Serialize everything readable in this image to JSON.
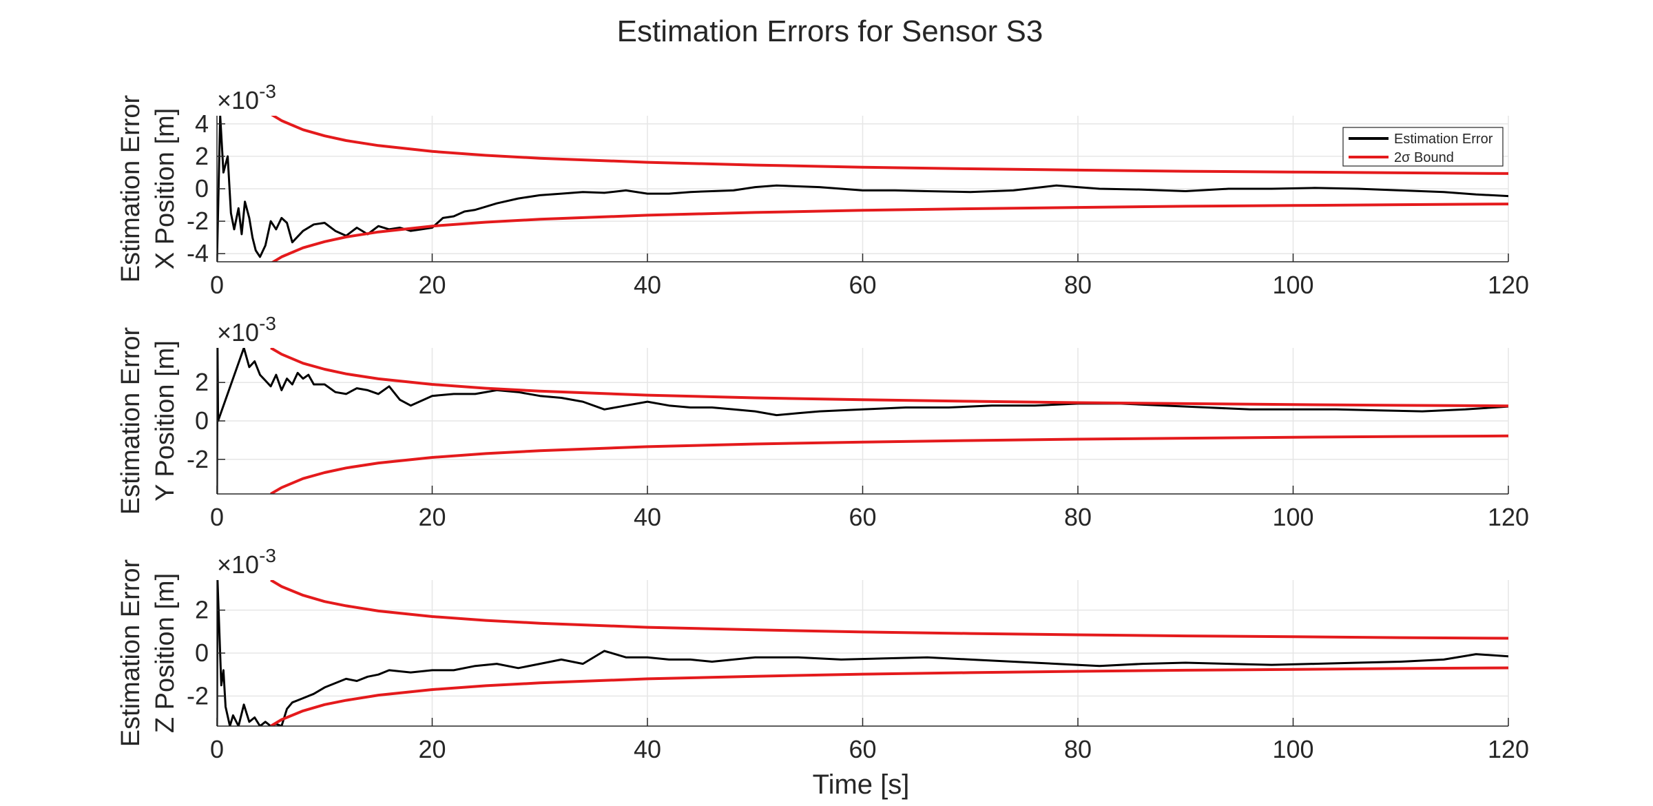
{
  "figure": {
    "title": "Estimation Errors for Sensor S3",
    "xlabel": "Time [s]"
  },
  "colors": {
    "estimation_error": "#000000",
    "bound": "#e41a1c",
    "grid": "#e6e6e6",
    "axis": "#262626"
  },
  "chart_data": [
    {
      "type": "line",
      "panel": "x",
      "ylabel_line1": "Estimation Error",
      "ylabel_line2": "X Position [m]",
      "exponent_label": "×10",
      "exponent_power": "-3",
      "xlim": [
        0,
        120
      ],
      "ylim": [
        -4.5,
        4.5
      ],
      "xticks": [
        0,
        20,
        40,
        60,
        80,
        100,
        120
      ],
      "xtick_labels": [
        "0",
        "20",
        "40",
        "60",
        "80",
        "100",
        "120"
      ],
      "yticks": [
        -4,
        -2,
        0,
        2,
        4
      ],
      "ytick_labels": [
        "-4",
        "-2",
        "0",
        "2",
        "4"
      ],
      "grid": true,
      "legend": {
        "placement": "top-right",
        "entries": [
          {
            "label_main": "Estimation Error",
            "sigma": "",
            "series": "error"
          },
          {
            "label_main": " Bound",
            "sigma": "2σ",
            "series": "bound"
          }
        ]
      },
      "series": [
        {
          "key": "error",
          "x": [
            0,
            0.3,
            0.6,
            1,
            1.3,
            1.6,
            2,
            2.3,
            2.6,
            3,
            3.3,
            3.6,
            4,
            4.5,
            5,
            5.5,
            6,
            6.5,
            7,
            8,
            9,
            10,
            11,
            12,
            13,
            14,
            15,
            16,
            17,
            18,
            19,
            20,
            21,
            22,
            23,
            24,
            25,
            26,
            28,
            30,
            32,
            34,
            36,
            38,
            40,
            42,
            44,
            46,
            48,
            50,
            52,
            54,
            56,
            58,
            60,
            63,
            66,
            70,
            74,
            78,
            82,
            86,
            90,
            94,
            98,
            102,
            106,
            110,
            114,
            117,
            120
          ],
          "y": [
            -4.5,
            4.5,
            1,
            2,
            -1.5,
            -2.5,
            -1.2,
            -2.8,
            -0.8,
            -1.8,
            -3,
            -3.8,
            -4.2,
            -3.5,
            -2,
            -2.5,
            -1.8,
            -2.1,
            -3.3,
            -2.6,
            -2.2,
            -2.1,
            -2.6,
            -2.9,
            -2.4,
            -2.8,
            -2.3,
            -2.5,
            -2.4,
            -2.6,
            -2.5,
            -2.4,
            -1.8,
            -1.7,
            -1.4,
            -1.3,
            -1.1,
            -0.9,
            -0.6,
            -0.4,
            -0.3,
            -0.2,
            -0.25,
            -0.1,
            -0.3,
            -0.3,
            -0.2,
            -0.15,
            -0.1,
            0.1,
            0.2,
            0.15,
            0.1,
            0,
            -0.1,
            -0.1,
            -0.15,
            -0.2,
            -0.1,
            0.2,
            0.0,
            -0.05,
            -0.15,
            0.0,
            0.0,
            0.05,
            0.0,
            -0.1,
            -0.2,
            -0.35,
            -0.45
          ]
        },
        {
          "key": "bound_upper",
          "x": [
            5,
            6,
            8,
            10,
            12,
            15,
            20,
            25,
            30,
            40,
            50,
            60,
            70,
            80,
            90,
            100,
            110,
            120
          ],
          "y": [
            4.6,
            4.2,
            3.64,
            3.26,
            2.97,
            2.66,
            2.3,
            2.06,
            1.88,
            1.63,
            1.46,
            1.33,
            1.23,
            1.15,
            1.08,
            1.03,
            0.98,
            0.94
          ]
        },
        {
          "key": "bound_lower",
          "x": [
            5,
            6,
            8,
            10,
            12,
            15,
            20,
            25,
            30,
            40,
            50,
            60,
            70,
            80,
            90,
            100,
            110,
            120
          ],
          "y": [
            -4.6,
            -4.2,
            -3.64,
            -3.26,
            -2.97,
            -2.66,
            -2.3,
            -2.06,
            -1.88,
            -1.63,
            -1.46,
            -1.33,
            -1.23,
            -1.15,
            -1.08,
            -1.03,
            -0.98,
            -0.94
          ]
        }
      ]
    },
    {
      "type": "line",
      "panel": "y",
      "ylabel_line1": "Estimation Error",
      "ylabel_line2": "Y Position [m]",
      "exponent_label": "×10",
      "exponent_power": "-3",
      "xlim": [
        0,
        120
      ],
      "ylim": [
        -3.8,
        3.8
      ],
      "xticks": [
        0,
        20,
        40,
        60,
        80,
        100,
        120
      ],
      "xtick_labels": [
        "0",
        "20",
        "40",
        "60",
        "80",
        "100",
        "120"
      ],
      "yticks": [
        -2,
        0,
        2
      ],
      "ytick_labels": [
        "-2",
        "0",
        "2"
      ],
      "grid": true,
      "series": [
        {
          "key": "error",
          "x": [
            0,
            0.05,
            0.1,
            2.5,
            3,
            3.5,
            4,
            4.5,
            5,
            5.5,
            6,
            6.5,
            7,
            7.5,
            8,
            8.5,
            9,
            10,
            11,
            12,
            13,
            14,
            15,
            16,
            17,
            18,
            20,
            22,
            24,
            26,
            28,
            30,
            32,
            34,
            36,
            38,
            40,
            42,
            44,
            46,
            48,
            50,
            52,
            54,
            56,
            60,
            64,
            68,
            72,
            76,
            80,
            84,
            88,
            92,
            96,
            100,
            104,
            108,
            112,
            116,
            120
          ],
          "y": [
            -3.8,
            3.8,
            0,
            3.8,
            2.8,
            3.1,
            2.4,
            2.1,
            1.8,
            2.4,
            1.6,
            2.2,
            1.9,
            2.5,
            2.2,
            2.4,
            1.9,
            1.9,
            1.5,
            1.4,
            1.7,
            1.6,
            1.4,
            1.8,
            1.1,
            0.8,
            1.3,
            1.4,
            1.4,
            1.6,
            1.5,
            1.3,
            1.2,
            1.0,
            0.6,
            0.8,
            1.0,
            0.8,
            0.7,
            0.7,
            0.6,
            0.5,
            0.3,
            0.4,
            0.5,
            0.6,
            0.7,
            0.7,
            0.8,
            0.8,
            0.9,
            0.9,
            0.8,
            0.7,
            0.6,
            0.6,
            0.6,
            0.55,
            0.5,
            0.6,
            0.75
          ]
        },
        {
          "key": "bound_upper",
          "x": [
            5,
            6,
            8,
            10,
            12,
            15,
            20,
            25,
            30,
            40,
            50,
            60,
            70,
            80,
            90,
            100,
            110,
            120
          ],
          "y": [
            3.8,
            3.47,
            3.0,
            2.69,
            2.45,
            2.19,
            1.9,
            1.7,
            1.55,
            1.34,
            1.2,
            1.1,
            1.02,
            0.95,
            0.9,
            0.85,
            0.81,
            0.78
          ]
        },
        {
          "key": "bound_lower",
          "x": [
            5,
            6,
            8,
            10,
            12,
            15,
            20,
            25,
            30,
            40,
            50,
            60,
            70,
            80,
            90,
            100,
            110,
            120
          ],
          "y": [
            -3.8,
            -3.47,
            -3.0,
            -2.69,
            -2.45,
            -2.19,
            -1.9,
            -1.7,
            -1.55,
            -1.34,
            -1.2,
            -1.1,
            -1.02,
            -0.95,
            -0.9,
            -0.85,
            -0.81,
            -0.78
          ]
        }
      ]
    },
    {
      "type": "line",
      "panel": "z",
      "ylabel_line1": "Estimation Error",
      "ylabel_line2": "Z Position [m]",
      "exponent_label": "×10",
      "exponent_power": "-3",
      "xlim": [
        0,
        120
      ],
      "ylim": [
        -3.4,
        3.4
      ],
      "xticks": [
        0,
        20,
        40,
        60,
        80,
        100,
        120
      ],
      "xtick_labels": [
        "0",
        "20",
        "40",
        "60",
        "80",
        "100",
        "120"
      ],
      "yticks": [
        -2,
        0,
        2
      ],
      "ytick_labels": [
        "-2",
        "0",
        "2"
      ],
      "grid": true,
      "series": [
        {
          "key": "error",
          "x": [
            0,
            0.05,
            0.4,
            0.6,
            0.8,
            1.2,
            1.5,
            2,
            2.5,
            3,
            3.5,
            4,
            4.5,
            5,
            5.5,
            6,
            6.5,
            7,
            8,
            9,
            10,
            11,
            12,
            13,
            14,
            15,
            16,
            18,
            20,
            22,
            24,
            26,
            28,
            30,
            32,
            34,
            36,
            38,
            40,
            42,
            44,
            46,
            48,
            50,
            54,
            58,
            62,
            66,
            70,
            74,
            78,
            82,
            86,
            90,
            94,
            98,
            102,
            106,
            110,
            114,
            117,
            120
          ],
          "y": [
            -3.4,
            3.4,
            -1.5,
            -0.8,
            -2.5,
            -3.4,
            -2.9,
            -3.4,
            -2.4,
            -3.2,
            -3.0,
            -3.4,
            -3.2,
            -3.4,
            -3.3,
            -3.4,
            -2.6,
            -2.3,
            -2.1,
            -1.9,
            -1.6,
            -1.4,
            -1.2,
            -1.3,
            -1.1,
            -1.0,
            -0.8,
            -0.9,
            -0.8,
            -0.8,
            -0.6,
            -0.5,
            -0.7,
            -0.5,
            -0.3,
            -0.5,
            0.1,
            -0.2,
            -0.2,
            -0.3,
            -0.3,
            -0.4,
            -0.3,
            -0.2,
            -0.2,
            -0.3,
            -0.25,
            -0.2,
            -0.3,
            -0.4,
            -0.5,
            -0.6,
            -0.5,
            -0.45,
            -0.5,
            -0.55,
            -0.5,
            -0.45,
            -0.4,
            -0.3,
            -0.05,
            -0.15
          ]
        },
        {
          "key": "bound_upper",
          "x": [
            5,
            6,
            8,
            10,
            12,
            15,
            20,
            25,
            30,
            40,
            50,
            60,
            70,
            80,
            90,
            100,
            110,
            120
          ],
          "y": [
            3.4,
            3.1,
            2.69,
            2.4,
            2.2,
            1.96,
            1.7,
            1.52,
            1.39,
            1.2,
            1.08,
            0.98,
            0.91,
            0.85,
            0.8,
            0.76,
            0.72,
            0.69
          ]
        },
        {
          "key": "bound_lower",
          "x": [
            5,
            6,
            8,
            10,
            12,
            15,
            20,
            25,
            30,
            40,
            50,
            60,
            70,
            80,
            90,
            100,
            110,
            120
          ],
          "y": [
            -3.4,
            -3.1,
            -2.69,
            -2.4,
            -2.2,
            -1.96,
            -1.7,
            -1.52,
            -1.39,
            -1.2,
            -1.08,
            -0.98,
            -0.91,
            -0.85,
            -0.8,
            -0.76,
            -0.72,
            -0.69
          ]
        }
      ]
    }
  ]
}
